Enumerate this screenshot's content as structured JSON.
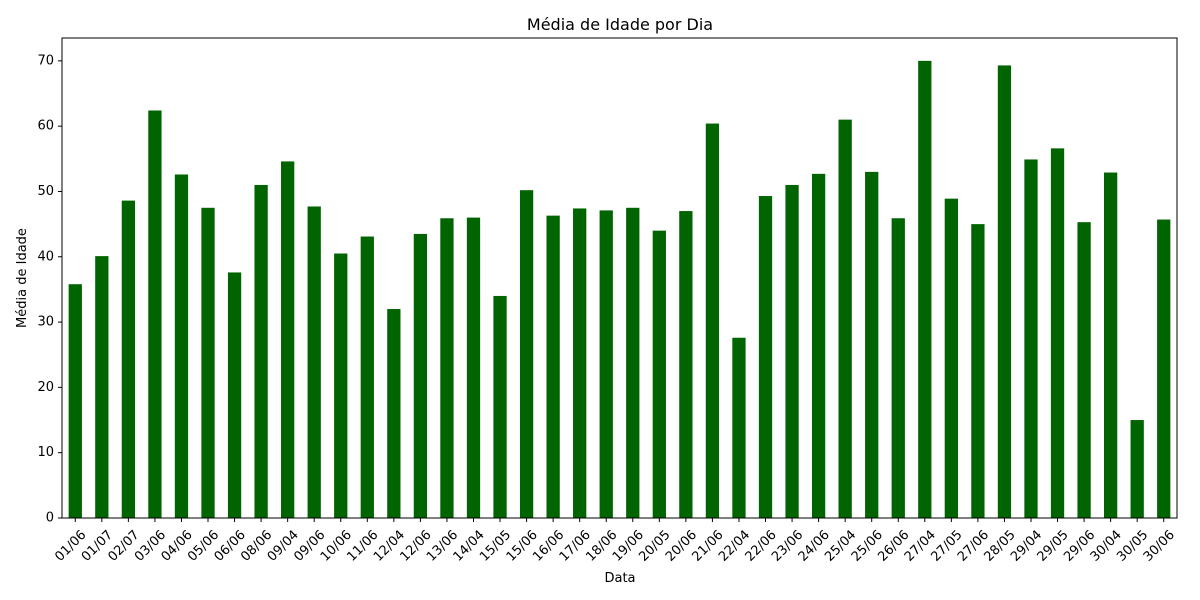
{
  "chart_data": {
    "type": "bar",
    "title": "Média de Idade por Dia",
    "xlabel": "Data",
    "ylabel": "Média de Idade",
    "ylim": [
      0,
      73.5
    ],
    "yticks": [
      0,
      10,
      20,
      30,
      40,
      50,
      60,
      70
    ],
    "grid": false,
    "bar_color": "#006400",
    "categories": [
      "01/06",
      "01/07",
      "02/07",
      "03/06",
      "04/06",
      "05/06",
      "06/06",
      "08/06",
      "09/04",
      "09/06",
      "10/06",
      "11/06",
      "12/04",
      "12/06",
      "13/06",
      "14/04",
      "15/05",
      "15/06",
      "16/06",
      "17/06",
      "18/06",
      "19/06",
      "20/05",
      "20/06",
      "21/06",
      "22/04",
      "22/06",
      "23/06",
      "24/06",
      "25/04",
      "25/06",
      "26/06",
      "27/04",
      "27/05",
      "27/06",
      "28/05",
      "29/04",
      "29/05",
      "29/06",
      "30/04",
      "30/05",
      "30/06"
    ],
    "values": [
      35.8,
      40.1,
      48.6,
      62.4,
      52.6,
      47.5,
      37.6,
      51.0,
      54.6,
      47.7,
      40.5,
      43.1,
      32.0,
      43.5,
      45.9,
      46.0,
      34.0,
      50.2,
      46.3,
      47.4,
      47.1,
      47.5,
      44.0,
      47.0,
      60.4,
      27.6,
      49.3,
      51.0,
      52.7,
      61.0,
      53.0,
      45.9,
      70.0,
      48.9,
      45.0,
      69.3,
      54.9,
      56.6,
      45.3,
      52.9,
      15.0,
      45.7
    ]
  }
}
